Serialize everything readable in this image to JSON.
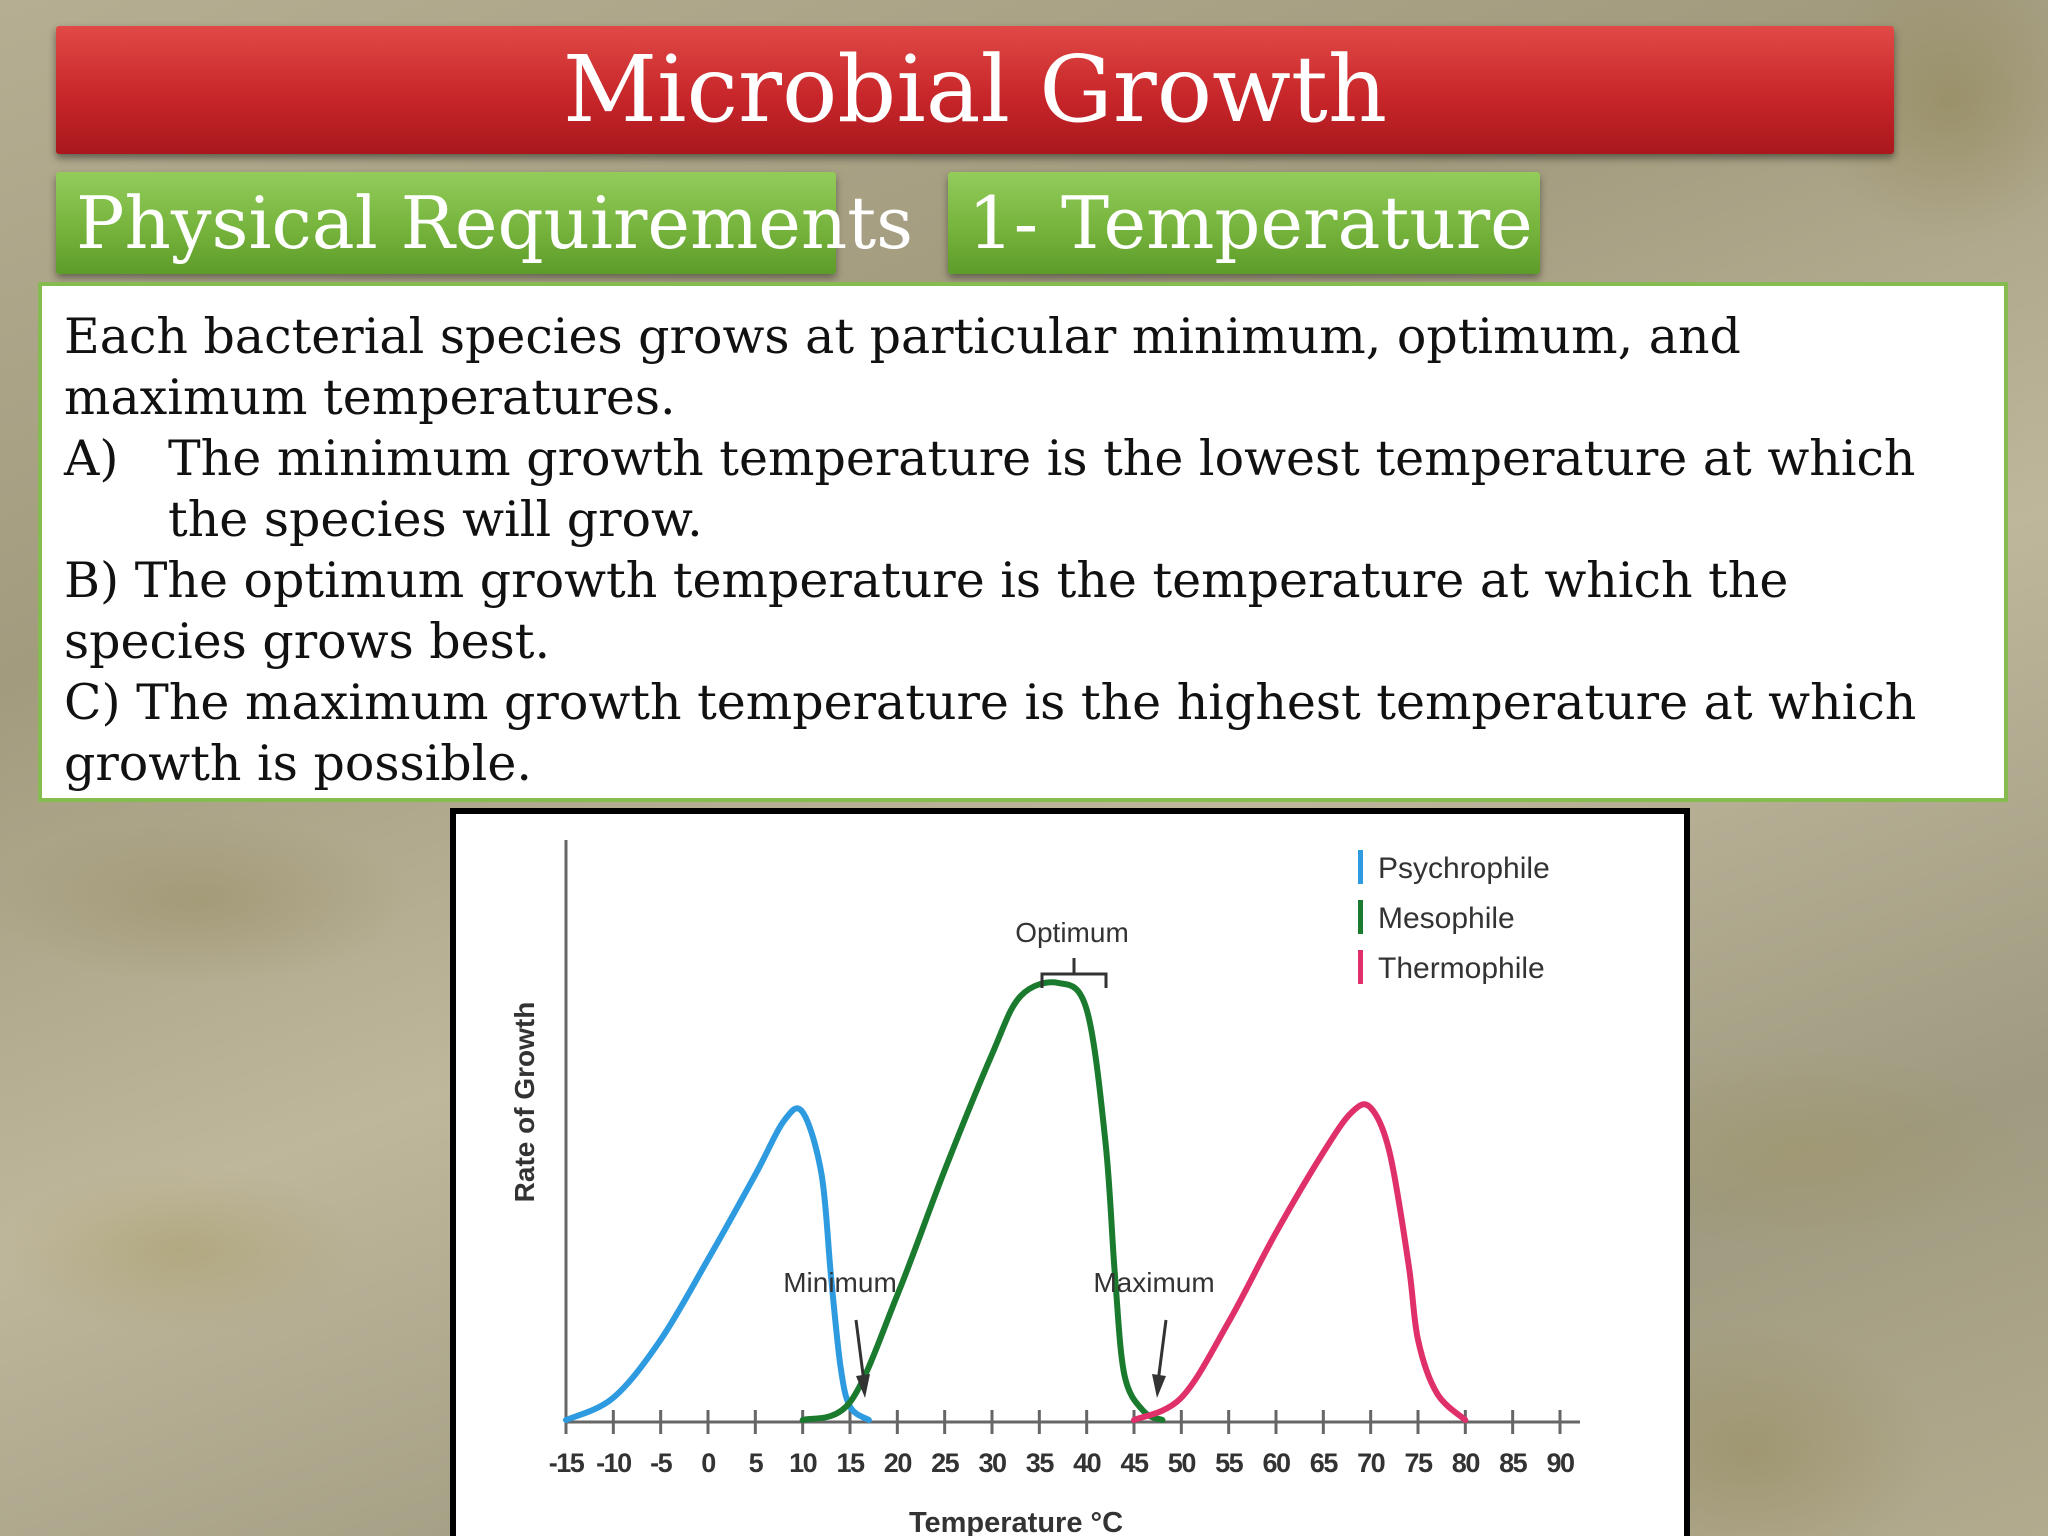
{
  "slide": {
    "title": "Microbial Growth",
    "tag_physical": "Physical Requirements",
    "tag_temperature": "1- Temperature",
    "intro": "Each bacterial species grows at particular minimum, optimum, and maximum temperatures.",
    "point_a_letter": "A)",
    "point_a_text": "The minimum growth temperature is the lowest temperature at which the species will grow.",
    "point_b": "B) The optimum growth temperature is the temperature at which the species grows best.",
    "point_c": "C) The maximum growth temperature is the highest temperature at which growth is possible."
  },
  "colors": {
    "psychrophile": "#2e9be0",
    "mesophile": "#1a7a2e",
    "thermophile": "#e0306a",
    "title_bar": "#c8262a",
    "tag_bar": "#76b43d"
  },
  "chart_data": {
    "type": "line",
    "xlabel": "Temperature °C",
    "ylabel": "Rate of Growth",
    "x_ticks": [
      "-15",
      "-10",
      "-5",
      "0",
      "5",
      "10",
      "15",
      "20",
      "25",
      "30",
      "35",
      "40",
      "45",
      "50",
      "55",
      "60",
      "65",
      "70",
      "75",
      "80",
      "85",
      "90"
    ],
    "xlim": [
      -15,
      90
    ],
    "ylim": [
      0,
      1
    ],
    "legend_position": "top-right",
    "series": [
      {
        "name": "Psychrophile",
        "color": "#2e9be0",
        "points": [
          [
            -15,
            0
          ],
          [
            -10,
            0.05
          ],
          [
            -5,
            0.18
          ],
          [
            0,
            0.36
          ],
          [
            5,
            0.55
          ],
          [
            8,
            0.67
          ],
          [
            10,
            0.69
          ],
          [
            12,
            0.55
          ],
          [
            13,
            0.32
          ],
          [
            14,
            0.12
          ],
          [
            15,
            0.03
          ],
          [
            17,
            0
          ]
        ]
      },
      {
        "name": "Mesophile",
        "color": "#1a7a2e",
        "points": [
          [
            10,
            0
          ],
          [
            15,
            0.04
          ],
          [
            20,
            0.28
          ],
          [
            25,
            0.56
          ],
          [
            30,
            0.82
          ],
          [
            33,
            0.95
          ],
          [
            37,
            0.98
          ],
          [
            40,
            0.92
          ],
          [
            42,
            0.62
          ],
          [
            43,
            0.32
          ],
          [
            44,
            0.1
          ],
          [
            46,
            0.02
          ],
          [
            48,
            0
          ]
        ]
      },
      {
        "name": "Thermophile",
        "color": "#e0306a",
        "points": [
          [
            45,
            0
          ],
          [
            50,
            0.05
          ],
          [
            55,
            0.22
          ],
          [
            60,
            0.42
          ],
          [
            65,
            0.6
          ],
          [
            68,
            0.69
          ],
          [
            70,
            0.7
          ],
          [
            72,
            0.6
          ],
          [
            74,
            0.35
          ],
          [
            75,
            0.18
          ],
          [
            77,
            0.06
          ],
          [
            80,
            0
          ]
        ]
      }
    ],
    "annotations": [
      "Optimum",
      "Minimum",
      "Maximum"
    ]
  }
}
